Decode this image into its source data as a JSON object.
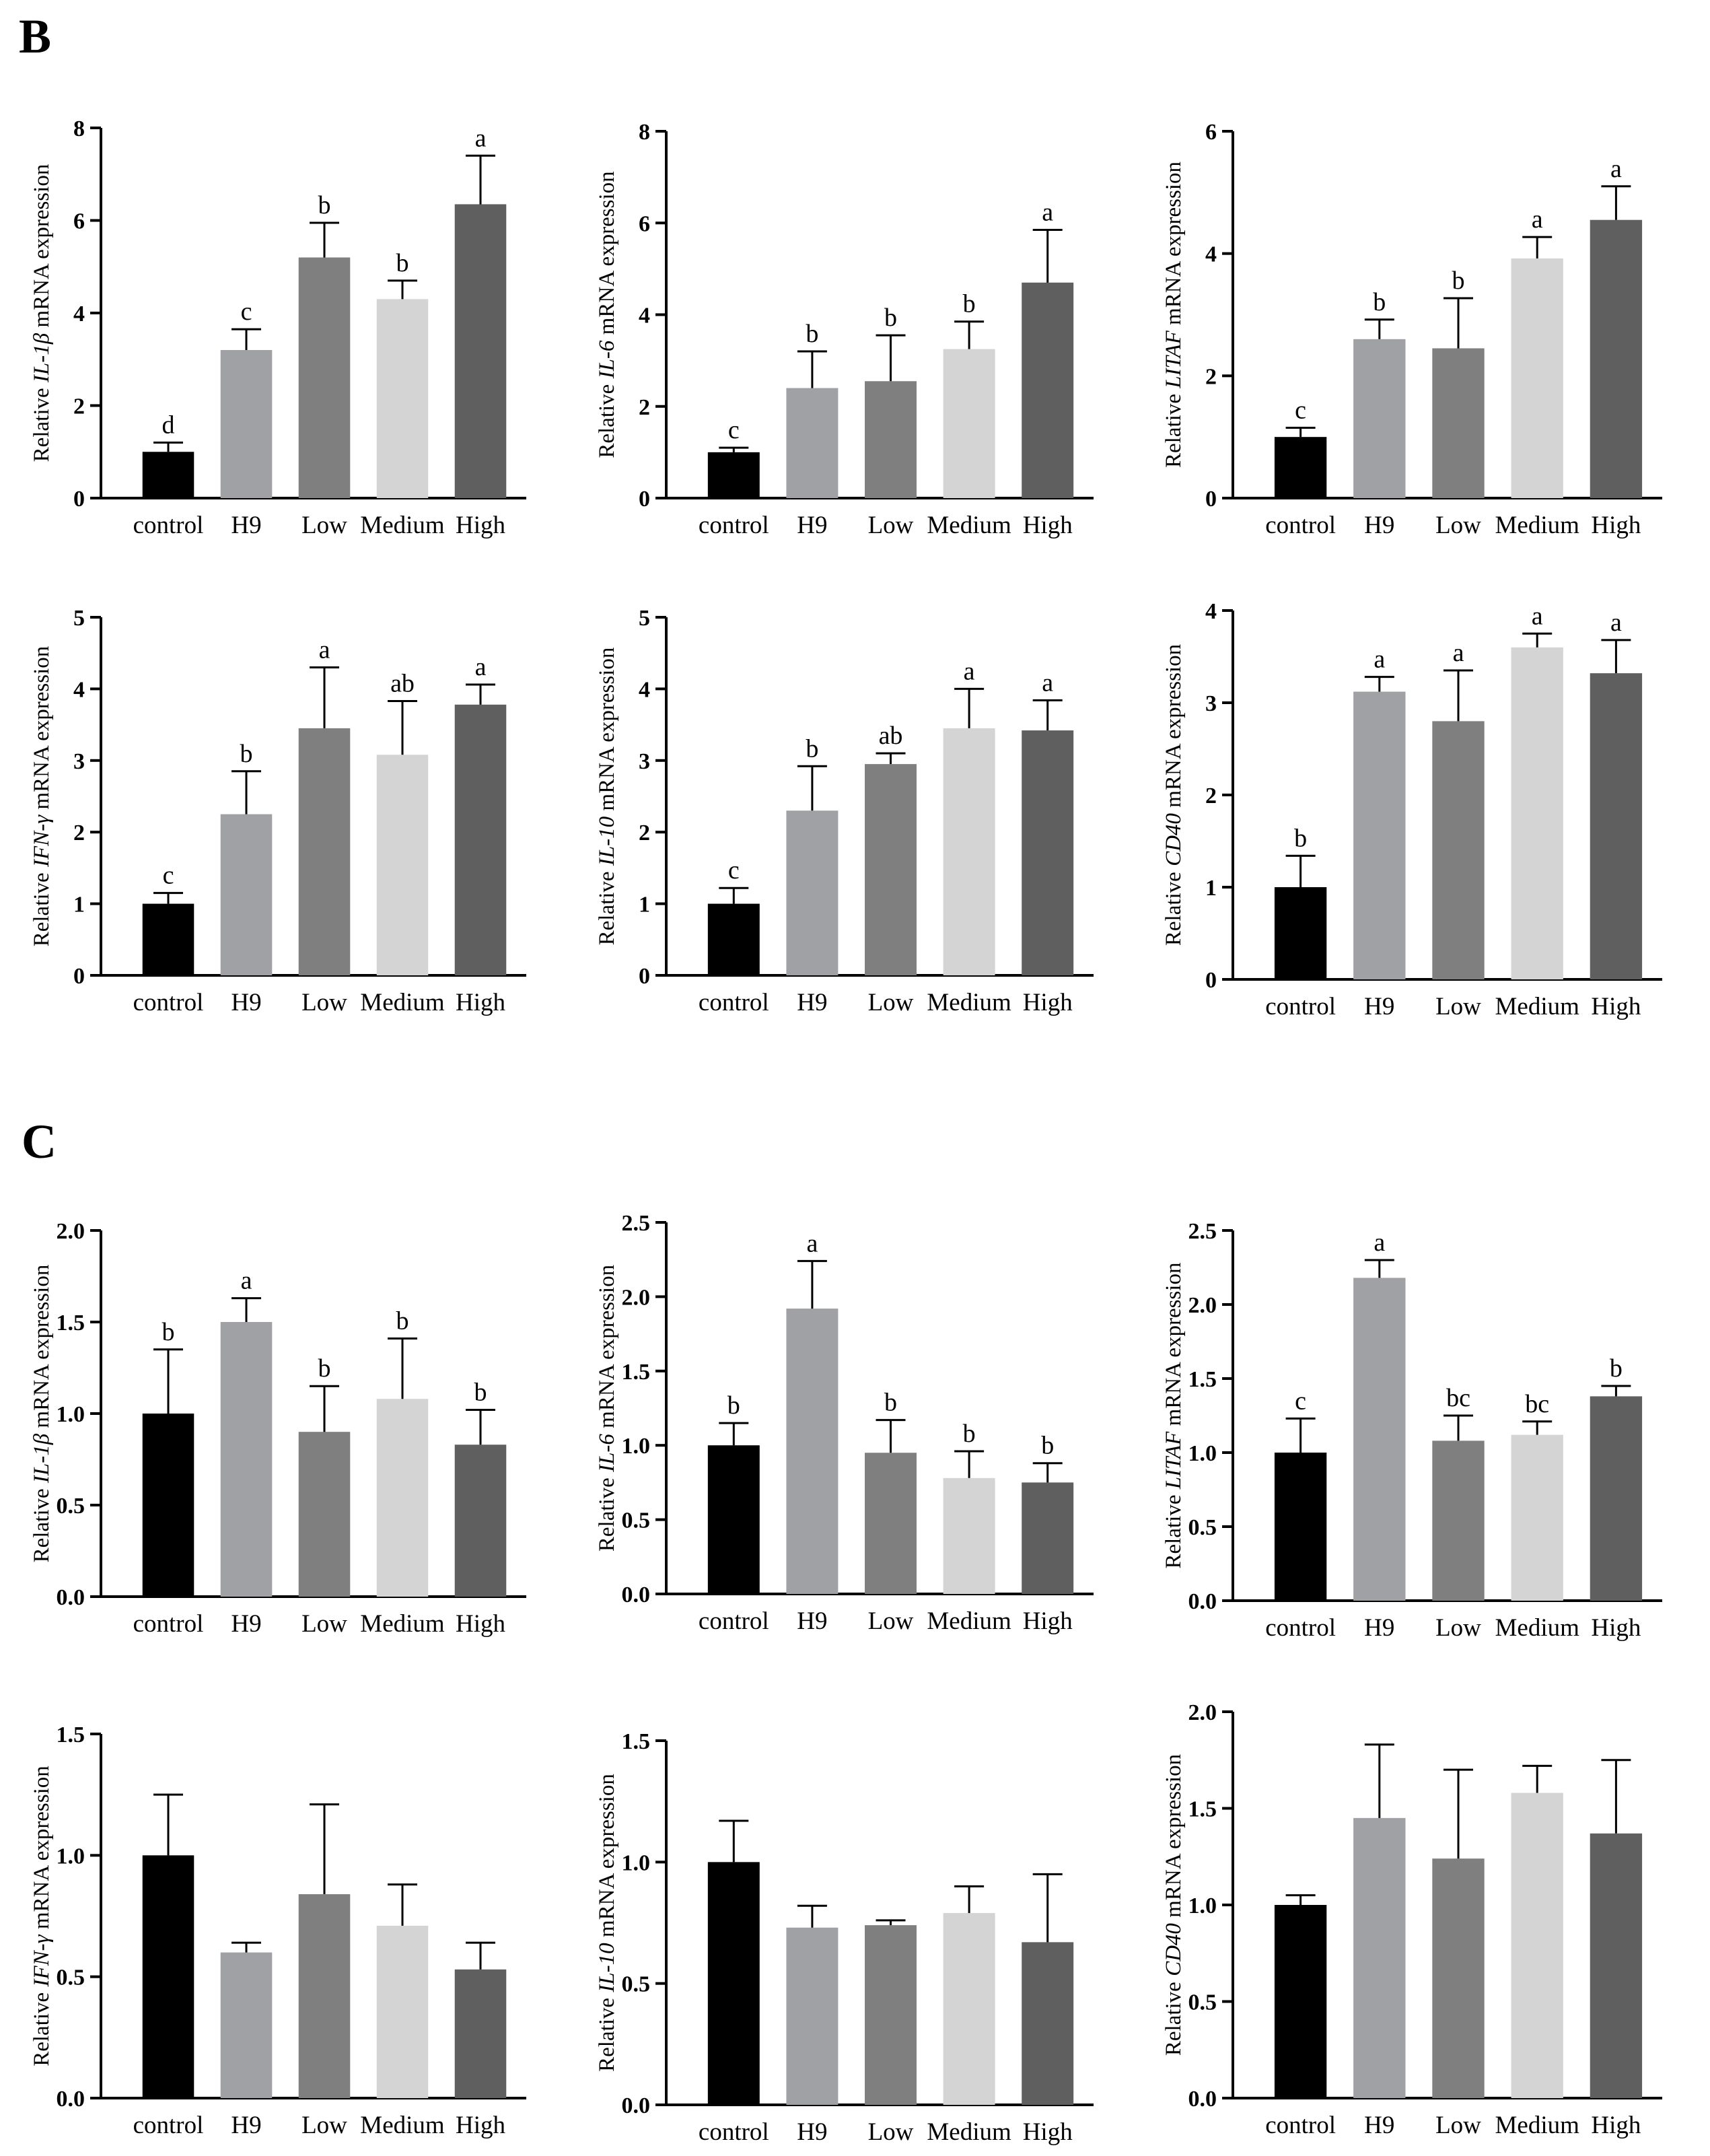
{
  "panels": [
    {
      "label": "B"
    },
    {
      "label": "C"
    }
  ],
  "group_colors": [
    "#000000",
    "#a0a1a5",
    "#7f7f7f",
    "#d4d4d4",
    "#5f5f5f"
  ],
  "ylabel_prefix": "Relative ",
  "ylabel_suffix": " mRNA expression",
  "chart_data": [
    {
      "panel": "B",
      "type": "bar",
      "gene": "IL-1β",
      "categories": [
        "control",
        "H9",
        "Low",
        "Medium",
        "High"
      ],
      "values": [
        1.0,
        3.2,
        5.2,
        4.3,
        6.35
      ],
      "errors": [
        0.2,
        0.45,
        0.75,
        0.4,
        1.05
      ],
      "significance": [
        "d",
        "c",
        "b",
        "b",
        "a"
      ],
      "ylim": [
        0,
        8
      ],
      "yticks": [
        "0",
        "2",
        "4",
        "6",
        "8"
      ]
    },
    {
      "panel": "B",
      "type": "bar",
      "gene": "IL-6",
      "categories": [
        "control",
        "H9",
        "Low",
        "Medium",
        "High"
      ],
      "values": [
        1.0,
        2.4,
        2.55,
        3.25,
        4.7
      ],
      "errors": [
        0.1,
        0.8,
        1.0,
        0.6,
        1.15
      ],
      "significance": [
        "c",
        "b",
        "b",
        "b",
        "a"
      ],
      "ylim": [
        0,
        8
      ],
      "yticks": [
        "0",
        "2",
        "4",
        "6",
        "8"
      ]
    },
    {
      "panel": "B",
      "type": "bar",
      "gene": "LITAF",
      "categories": [
        "control",
        "H9",
        "Low",
        "Medium",
        "High"
      ],
      "values": [
        1.0,
        2.6,
        2.45,
        3.92,
        4.55
      ],
      "errors": [
        0.15,
        0.32,
        0.82,
        0.35,
        0.55
      ],
      "significance": [
        "c",
        "b",
        "b",
        "a",
        "a"
      ],
      "ylim": [
        0,
        6
      ],
      "yticks": [
        "0",
        "2",
        "4",
        "6"
      ]
    },
    {
      "panel": "B",
      "type": "bar",
      "gene": "IFN-γ",
      "categories": [
        "control",
        "H9",
        "Low",
        "Medium",
        "High"
      ],
      "values": [
        1.0,
        2.25,
        3.45,
        3.08,
        3.78
      ],
      "errors": [
        0.15,
        0.6,
        0.85,
        0.75,
        0.28
      ],
      "significance": [
        "c",
        "b",
        "a",
        "ab",
        "a"
      ],
      "ylim": [
        0,
        5
      ],
      "yticks": [
        "0",
        "1",
        "2",
        "3",
        "4",
        "5"
      ]
    },
    {
      "panel": "B",
      "type": "bar",
      "gene": "IL-10",
      "categories": [
        "control",
        "H9",
        "Low",
        "Medium",
        "High"
      ],
      "values": [
        1.0,
        2.3,
        2.95,
        3.45,
        3.42
      ],
      "errors": [
        0.22,
        0.62,
        0.15,
        0.55,
        0.42
      ],
      "significance": [
        "c",
        "b",
        "ab",
        "a",
        "a"
      ],
      "ylim": [
        0,
        5
      ],
      "yticks": [
        "0",
        "1",
        "2",
        "3",
        "4",
        "5"
      ]
    },
    {
      "panel": "B",
      "type": "bar",
      "gene": "CD40",
      "categories": [
        "control",
        "H9",
        "Low",
        "Medium",
        "High"
      ],
      "values": [
        1.0,
        3.12,
        2.8,
        3.6,
        3.32
      ],
      "errors": [
        0.34,
        0.16,
        0.55,
        0.15,
        0.36
      ],
      "significance": [
        "b",
        "a",
        "a",
        "a",
        "a"
      ],
      "ylim": [
        0,
        4
      ],
      "yticks": [
        "0",
        "1",
        "2",
        "3",
        "4"
      ]
    },
    {
      "panel": "C",
      "type": "bar",
      "gene": "IL-1β",
      "categories": [
        "control",
        "H9",
        "Low",
        "Medium",
        "High"
      ],
      "values": [
        1.0,
        1.5,
        0.9,
        1.08,
        0.83
      ],
      "errors": [
        0.35,
        0.13,
        0.25,
        0.33,
        0.19
      ],
      "significance": [
        "b",
        "a",
        "b",
        "b",
        "b"
      ],
      "ylim": [
        0,
        2.0
      ],
      "yticks": [
        "0.0",
        "0.5",
        "1.0",
        "1.5",
        "2.0"
      ]
    },
    {
      "panel": "C",
      "type": "bar",
      "gene": "IL-6",
      "categories": [
        "control",
        "H9",
        "Low",
        "Medium",
        "High"
      ],
      "values": [
        1.0,
        1.92,
        0.95,
        0.78,
        0.75
      ],
      "errors": [
        0.15,
        0.32,
        0.22,
        0.18,
        0.13
      ],
      "significance": [
        "b",
        "a",
        "b",
        "b",
        "b"
      ],
      "ylim": [
        0,
        2.5
      ],
      "yticks": [
        "0.0",
        "0.5",
        "1.0",
        "1.5",
        "2.0",
        "2.5"
      ]
    },
    {
      "panel": "C",
      "type": "bar",
      "gene": "LITAF",
      "categories": [
        "control",
        "H9",
        "Low",
        "Medium",
        "High"
      ],
      "values": [
        1.0,
        2.18,
        1.08,
        1.12,
        1.38
      ],
      "errors": [
        0.23,
        0.12,
        0.17,
        0.09,
        0.07
      ],
      "significance": [
        "c",
        "a",
        "bc",
        "bc",
        "b"
      ],
      "ylim": [
        0,
        2.5
      ],
      "yticks": [
        "0.0",
        "0.5",
        "1.0",
        "1.5",
        "2.0",
        "2.5"
      ]
    },
    {
      "panel": "C",
      "type": "bar",
      "gene": "IFN-γ",
      "categories": [
        "control",
        "H9",
        "Low",
        "Medium",
        "High"
      ],
      "values": [
        1.0,
        0.6,
        0.84,
        0.71,
        0.53
      ],
      "errors": [
        0.25,
        0.04,
        0.37,
        0.17,
        0.11
      ],
      "significance": [
        "",
        "",
        "",
        "",
        ""
      ],
      "ylim": [
        0,
        1.5
      ],
      "yticks": [
        "0.0",
        "0.5",
        "1.0",
        "1.5"
      ]
    },
    {
      "panel": "C",
      "type": "bar",
      "gene": "IL-10",
      "categories": [
        "control",
        "H9",
        "Low",
        "Medium",
        "High"
      ],
      "values": [
        1.0,
        0.73,
        0.74,
        0.79,
        0.67
      ],
      "errors": [
        0.17,
        0.09,
        0.02,
        0.11,
        0.28
      ],
      "significance": [
        "",
        "",
        "",
        "",
        ""
      ],
      "ylim": [
        0,
        1.5
      ],
      "yticks": [
        "0.0",
        "0.5",
        "1.0",
        "1.5"
      ]
    },
    {
      "panel": "C",
      "type": "bar",
      "gene": "CD40",
      "categories": [
        "control",
        "H9",
        "Low",
        "Medium",
        "High"
      ],
      "values": [
        1.0,
        1.45,
        1.24,
        1.58,
        1.37
      ],
      "errors": [
        0.05,
        0.38,
        0.46,
        0.14,
        0.38
      ],
      "significance": [
        "",
        "",
        "",
        "",
        ""
      ],
      "ylim": [
        0,
        2.0
      ],
      "yticks": [
        "0.0",
        "0.5",
        "1.0",
        "1.5",
        "2.0"
      ]
    }
  ]
}
